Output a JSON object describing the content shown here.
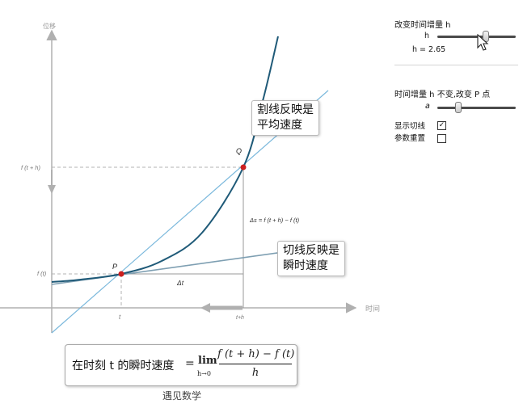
{
  "controls": {
    "section1_title": "改变时间增量 h",
    "h_label": "h",
    "h_value_text": "h = 2.65",
    "h_slider_value": 0.62,
    "section2_title": "时间增量 h 不变,改变 P 点",
    "a_label": "a",
    "a_slider_value": 0.27,
    "show_tangent_label": "显示切线",
    "show_tangent_checked": true,
    "show_tangent_mark": "✓",
    "reset_label": "参数重置",
    "reset_checked": false
  },
  "plot": {
    "y_axis_label": "位移",
    "x_axis_label": "时间",
    "label_f_t_plus_h": "f (t +  h)",
    "label_f_t": "f (t)",
    "tick_t": "t",
    "tick_t_plus_h": "t+h",
    "point_p": "P",
    "point_q": "Q",
    "delta_t": "Δt",
    "delta_s": "Δs = f (t +  h) − f (t)",
    "colors": {
      "curve": "#1f5a78",
      "secant": "#7ab8dc",
      "tangent": "#7e9fb2",
      "axis": "#b0b0b0",
      "point": "#cc1f1f",
      "dashed": "#b3b3b3"
    }
  },
  "callouts": {
    "secant_line1": "割线反映是",
    "secant_line2": "平均速度",
    "tangent_line1": "切线反映是",
    "tangent_line2": "瞬时速度"
  },
  "formula": {
    "prefix": "在时刻 t 的瞬时速度",
    "equals": "=",
    "lim": "lim",
    "lim_sub": "h→0",
    "numerator": "f (t + h) − f (t)",
    "denominator": "h"
  },
  "caption": "遇见数学"
}
